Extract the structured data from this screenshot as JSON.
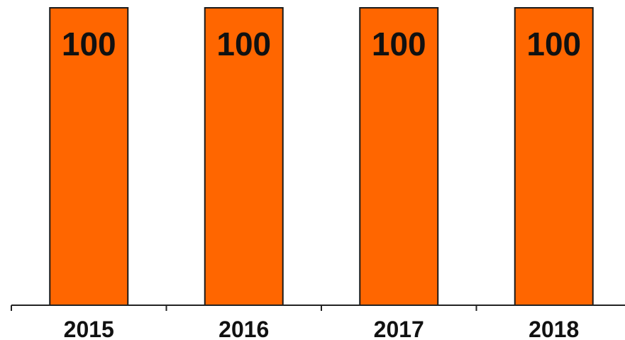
{
  "chart_data": {
    "type": "bar",
    "categories": [
      "2015",
      "2016",
      "2017",
      "2018"
    ],
    "values": [
      100,
      100,
      100,
      100
    ],
    "data_labels": [
      "100",
      "100",
      "100",
      "100"
    ],
    "title": "",
    "xlabel": "",
    "ylabel": "",
    "ylim": [
      0,
      100
    ],
    "grid": false,
    "legend": "none",
    "bar_color": "#ff6600",
    "bar_outline_color": "#1a1a1a"
  }
}
